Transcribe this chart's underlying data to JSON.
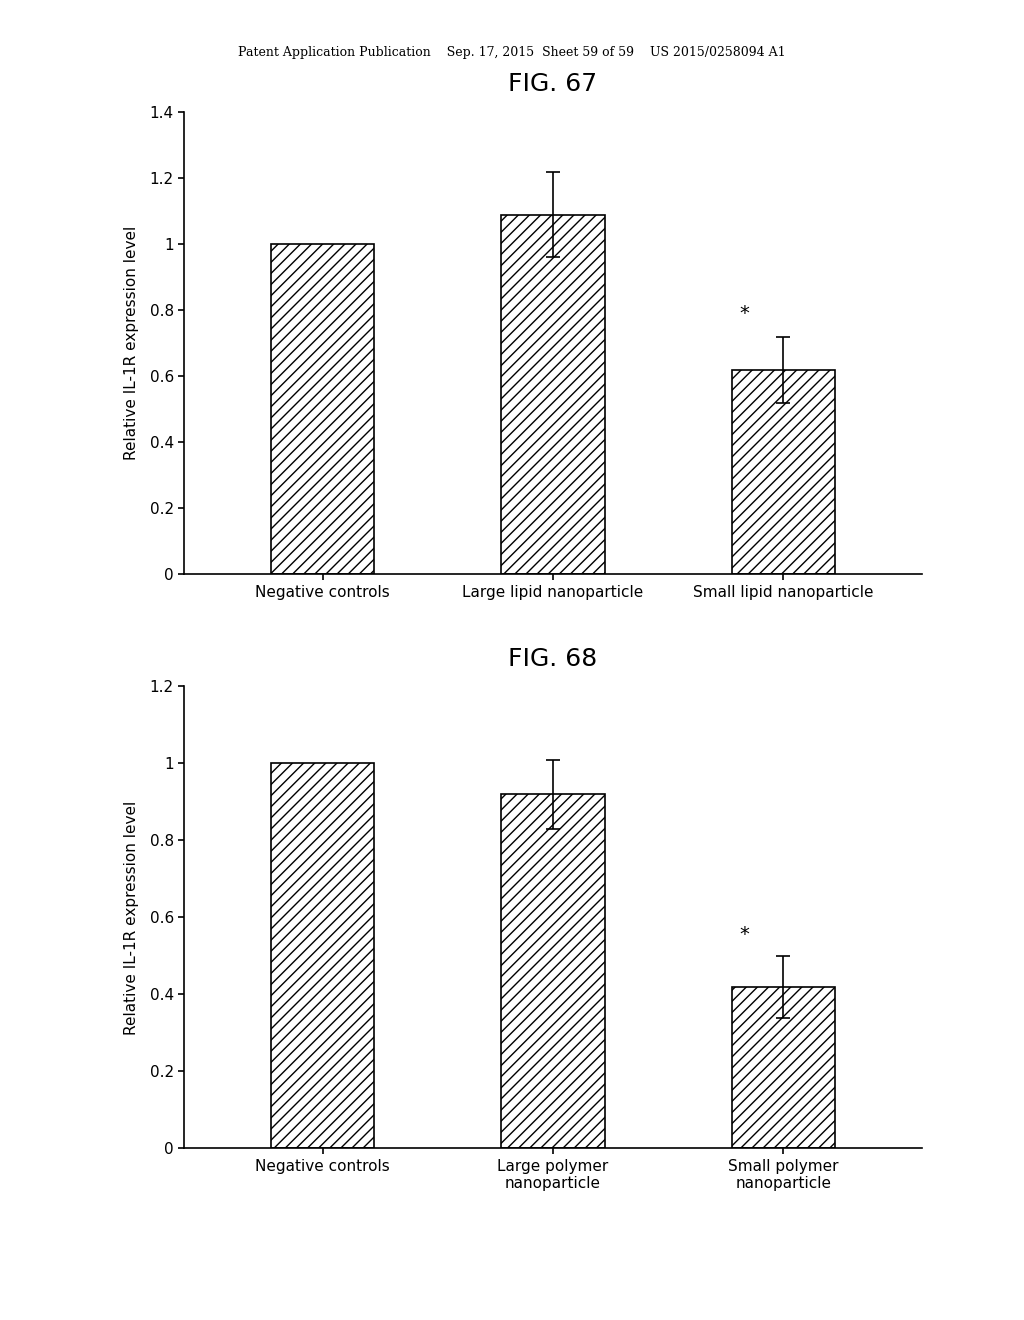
{
  "fig67": {
    "title": "FIG. 67",
    "categories": [
      "Negative controls",
      "Large lipid nanoparticle",
      "Small lipid nanoparticle"
    ],
    "values": [
      1.0,
      1.09,
      0.62
    ],
    "errors": [
      0.0,
      0.13,
      0.1
    ],
    "ylabel": "Relative IL-1R expression level",
    "ylim": [
      0,
      1.4
    ],
    "yticks": [
      0,
      0.2,
      0.4,
      0.6,
      0.8,
      1.0,
      1.2,
      1.4
    ],
    "star_positions": [
      2
    ],
    "bar_color": "white",
    "hatch": "///",
    "hatch_color": "#555555"
  },
  "fig68": {
    "title": "FIG. 68",
    "categories": [
      "Negative controls",
      "Large polymer\nnanoparticle",
      "Small polymer\nnanoparticle"
    ],
    "values": [
      1.0,
      0.92,
      0.42
    ],
    "errors": [
      0.0,
      0.09,
      0.08
    ],
    "ylabel": "Relative IL-1R expression level",
    "ylim": [
      0,
      1.2
    ],
    "yticks": [
      0,
      0.2,
      0.4,
      0.6,
      0.8,
      1.0,
      1.2
    ],
    "star_positions": [
      2
    ],
    "bar_color": "white",
    "hatch": "///",
    "hatch_color": "#555555"
  },
  "header_text": "Patent Application Publication    Sep. 17, 2015  Sheet 59 of 59    US 2015/0258094 A1",
  "background_color": "#ffffff",
  "text_color": "#000000",
  "bar_edgecolor": "#000000",
  "errorbar_color": "#000000",
  "title_fontsize": 18,
  "label_fontsize": 11,
  "tick_fontsize": 11,
  "header_fontsize": 9
}
